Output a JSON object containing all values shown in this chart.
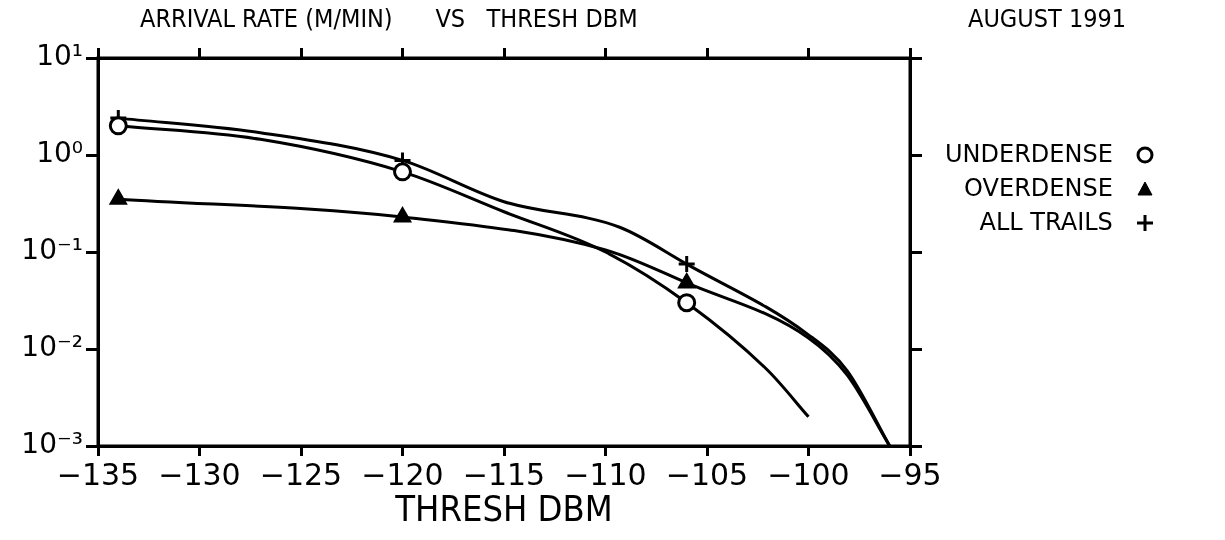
{
  "chart_data": {
    "type": "line",
    "title": "ARRIVAL RATE (M/MIN)      VS   THRESH DBM",
    "xlabel": "THRESH DBM",
    "annotations": [
      "AUGUST 1991"
    ],
    "xlim": [
      -135,
      -95
    ],
    "xticks": [
      -135,
      -130,
      -125,
      -120,
      -115,
      -110,
      -105,
      -100,
      -95
    ],
    "ylim": [
      0.001,
      10
    ],
    "yticks": [
      {
        "value": 10,
        "label": "10¹"
      },
      {
        "value": 1,
        "label": "10⁰"
      },
      {
        "value": 0.1,
        "label": "10⁻¹"
      },
      {
        "value": 0.01,
        "label": "10⁻²"
      },
      {
        "value": 0.001,
        "label": "10⁻³"
      }
    ],
    "log": "y",
    "grid": false,
    "legend": "right",
    "line_style": "solid",
    "series": [
      {
        "type": "line",
        "marker": "none",
        "color": "#000000",
        "x": [
          -134,
          -127,
          -120,
          -115,
          -110,
          -106,
          -102,
          -100
        ],
        "values": [
          2.0,
          1.45,
          0.67,
          0.26,
          0.1,
          0.03,
          0.006,
          0.002
        ]
      },
      {
        "type": "line",
        "marker": "none",
        "color": "#000000",
        "x": [
          -134,
          -120,
          -110,
          -106,
          -100,
          -98.1,
          -96
        ],
        "values": [
          0.35,
          0.23,
          0.105,
          0.048,
          0.013,
          0.0054,
          0.001
        ]
      },
      {
        "type": "line",
        "marker": "none",
        "color": "#000000",
        "x": [
          -134,
          -127,
          -120,
          -115,
          -109.3,
          -106,
          -100,
          -98.1,
          -96
        ],
        "values": [
          2.4,
          1.7,
          0.88,
          0.33,
          0.18,
          0.075,
          0.014,
          0.006,
          0.001
        ]
      },
      {
        "type": "scatter",
        "name": "UNDERDENSE",
        "marker": "circle",
        "color": "#000000",
        "x": [
          -134,
          -120,
          -106
        ],
        "values": [
          2.0,
          0.67,
          0.03
        ]
      },
      {
        "type": "scatter",
        "name": "OVERDENSE",
        "marker": "triangle",
        "color": "#000000",
        "x": [
          -134,
          -120,
          -106
        ],
        "values": [
          0.35,
          0.23,
          0.048
        ]
      },
      {
        "type": "scatter",
        "name": "ALL TRAILS",
        "marker": "cross",
        "color": "#000000",
        "x": [
          -134,
          -120,
          -106
        ],
        "values": [
          2.4,
          0.88,
          0.075
        ]
      }
    ]
  }
}
